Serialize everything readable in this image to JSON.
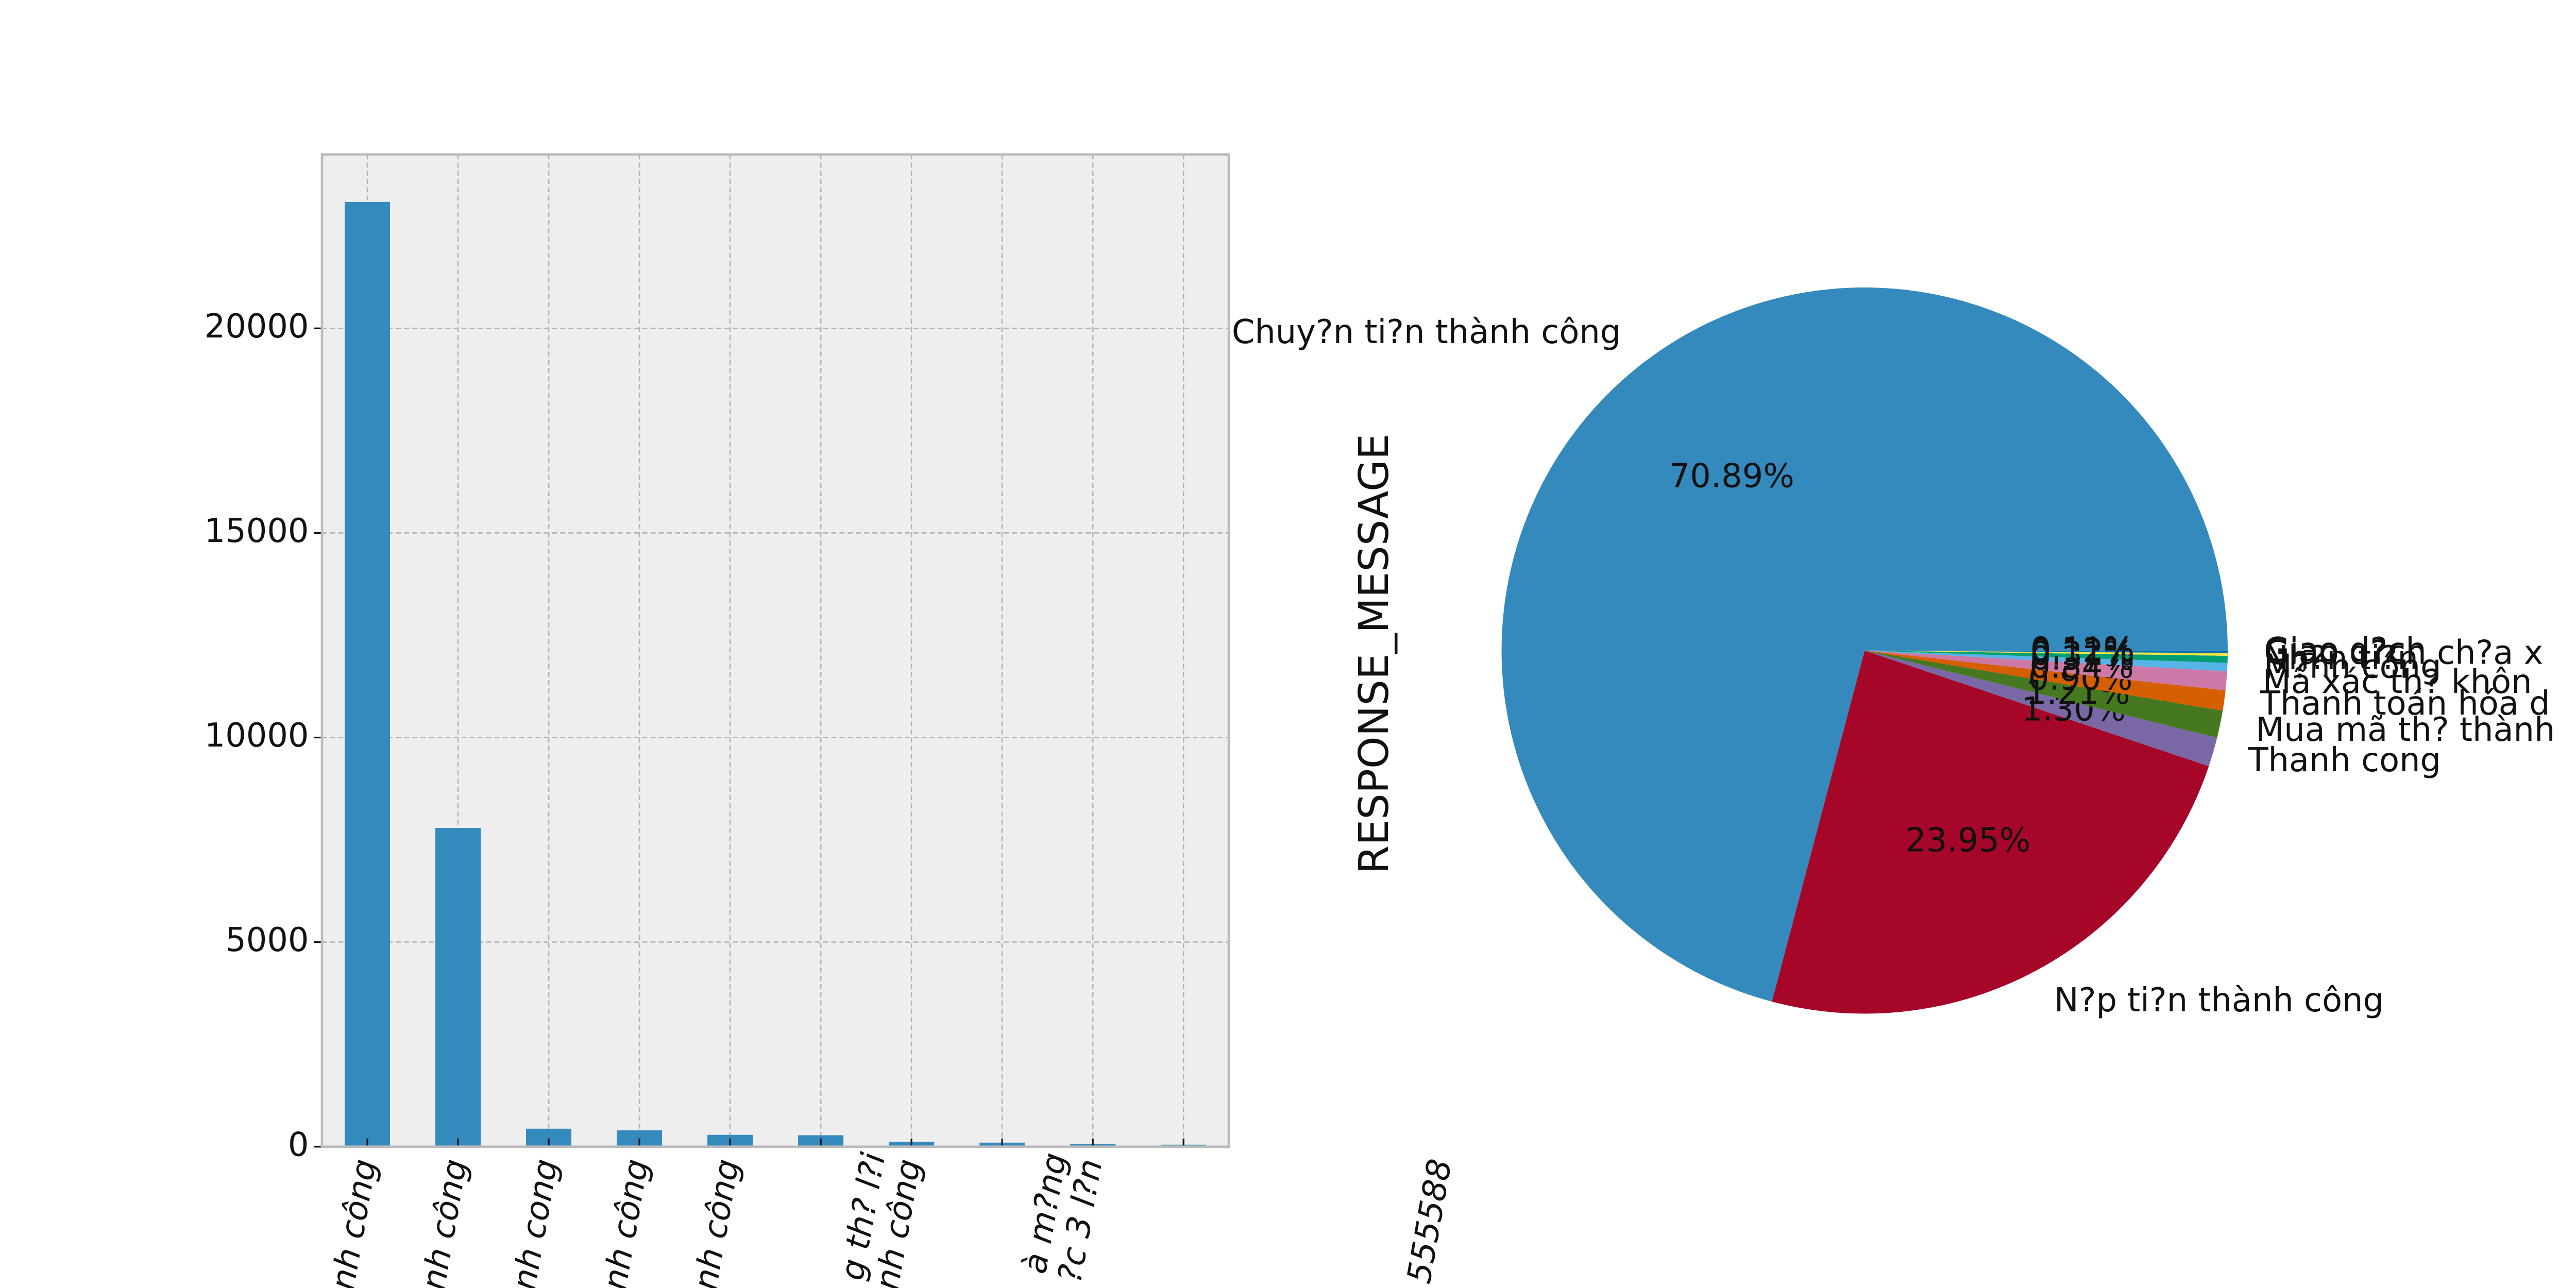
{
  "chart_data": [
    {
      "type": "bar",
      "categories": [
        "nh công",
        "nh công",
        "nh cong",
        "nh công",
        "nh công",
        null,
        "g th? l?i\nnh công",
        null,
        "à m?ng\n?c 3 l?n",
        null
      ],
      "values": [
        23090,
        7790,
        440,
        400,
        290,
        280,
        120,
        100,
        70,
        50
      ],
      "color": "#348ABD",
      "ylim": [
        0,
        24250
      ],
      "yticks": [
        0,
        5000,
        10000,
        15000,
        20000
      ],
      "grid": true,
      "annotations": [
        "555588"
      ]
    },
    {
      "type": "pie",
      "ylabel": "RESPONSE_MESSAGE",
      "categories": [
        "Chuy?n ti?n thành công",
        "N?p ti?n thành công",
        "Thanh cong",
        "Mua mã th? thành",
        "Thanh toán hóa d",
        "Mã xác th? khôn",
        "M?nh công",
        "Nh?n ti?n",
        "Giao d?ch ch?a x",
        "Giao d?ch"
      ],
      "values": [
        70.89,
        23.95,
        1.3,
        1.21,
        0.9,
        0.84,
        0.37,
        0.31,
        0.12,
        0.11
      ],
      "value_labels": [
        "70.89%",
        "23.95%",
        "1.30%",
        "1.21%",
        "0.90%",
        "0.84%",
        "0.37%",
        "0.31%",
        "0.12%",
        "0.11%"
      ],
      "colors": [
        "#348ABD",
        "#A60628",
        "#7A68A6",
        "#467821",
        "#D55E00",
        "#CC79A7",
        "#56B4E9",
        "#009E73",
        "#F0E442",
        "#0072B2"
      ],
      "startangle": 0
    }
  ]
}
